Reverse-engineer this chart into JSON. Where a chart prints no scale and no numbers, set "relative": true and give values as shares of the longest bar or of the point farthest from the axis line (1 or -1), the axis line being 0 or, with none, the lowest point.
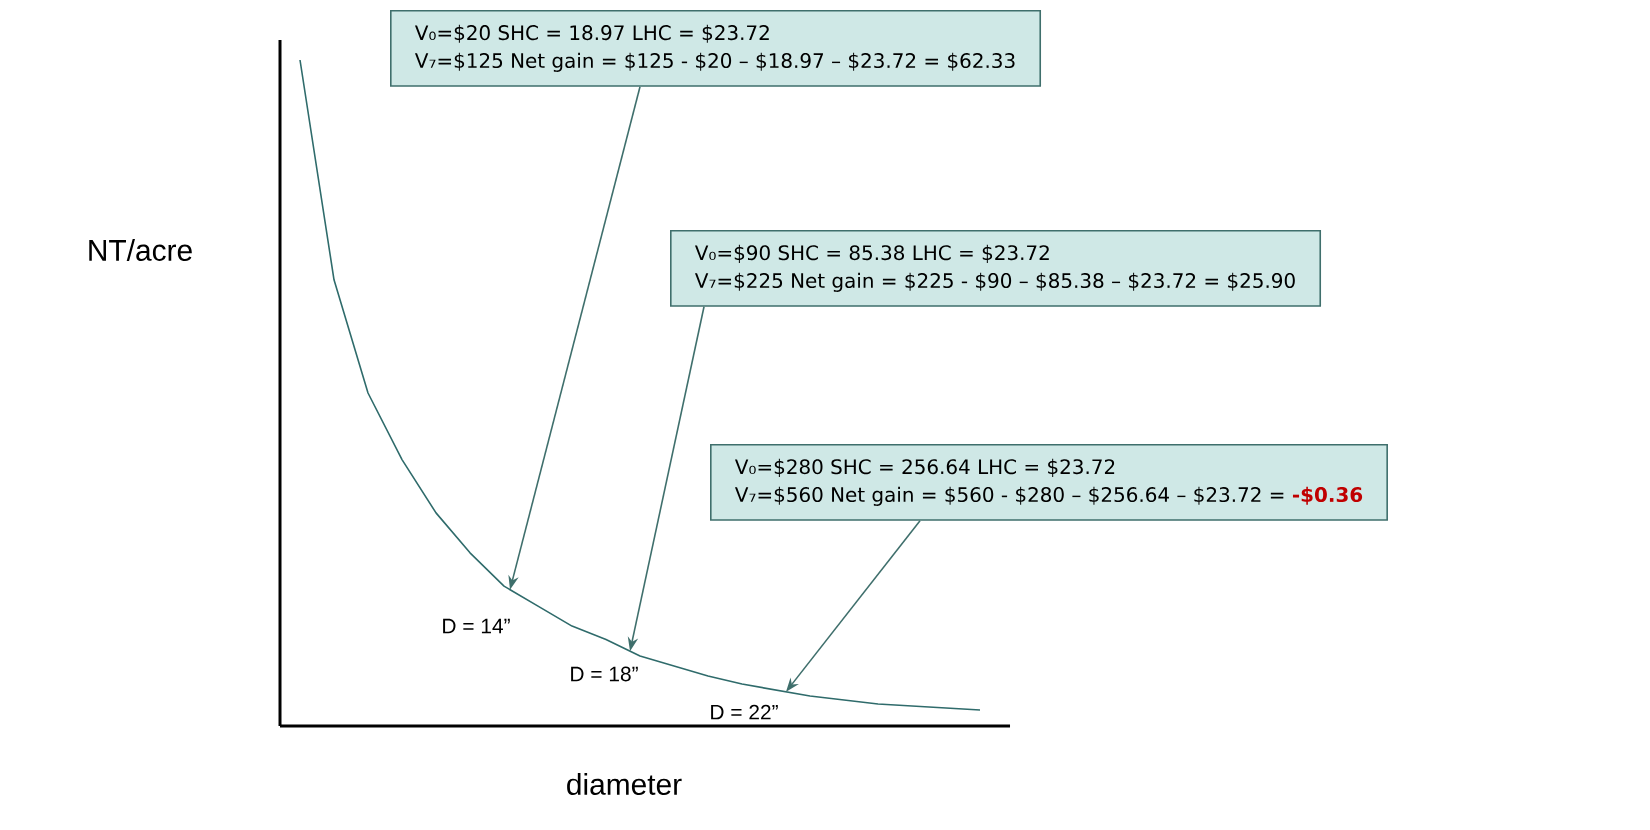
{
  "chart_data": {
    "type": "line",
    "relative": true,
    "color": "#2f6b6b",
    "categories": [
      null,
      null,
      null,
      null,
      null,
      null,
      null,
      null,
      null,
      null,
      null,
      null,
      null,
      null,
      null,
      null,
      null,
      null,
      null,
      null,
      null
    ],
    "values": [
      1.0,
      0.67,
      0.5,
      0.4,
      0.32,
      0.26,
      0.21,
      0.18,
      0.15,
      0.13,
      0.105,
      0.09,
      0.075,
      0.063,
      0.054,
      0.045,
      0.039,
      0.033,
      0.03,
      0.027,
      0.024
    ],
    "xlabel": "diameter",
    "ylabel": "NT/acre",
    "annotations": [
      "V₀=$20   SHC = 18.97   LHC = $23.72",
      "V₇=$125  Net gain = $125 - $20 – $18.97 – $23.72 = $62.33",
      "V₀=$90   SHC = 85.38   LHC = $23.72",
      "V₇=$225    Net gain = $225 - $90 – $85.38 – $23.72 = $25.90",
      "V₀=$280  SHC = 256.64   LHC = $23.72",
      "V₇=$560  Net gain = $560 - $280 – $256.64 – $23.72 =",
      "-$0.36",
      "D = 14”",
      "D = 18”",
      "D = 22”"
    ]
  }
}
